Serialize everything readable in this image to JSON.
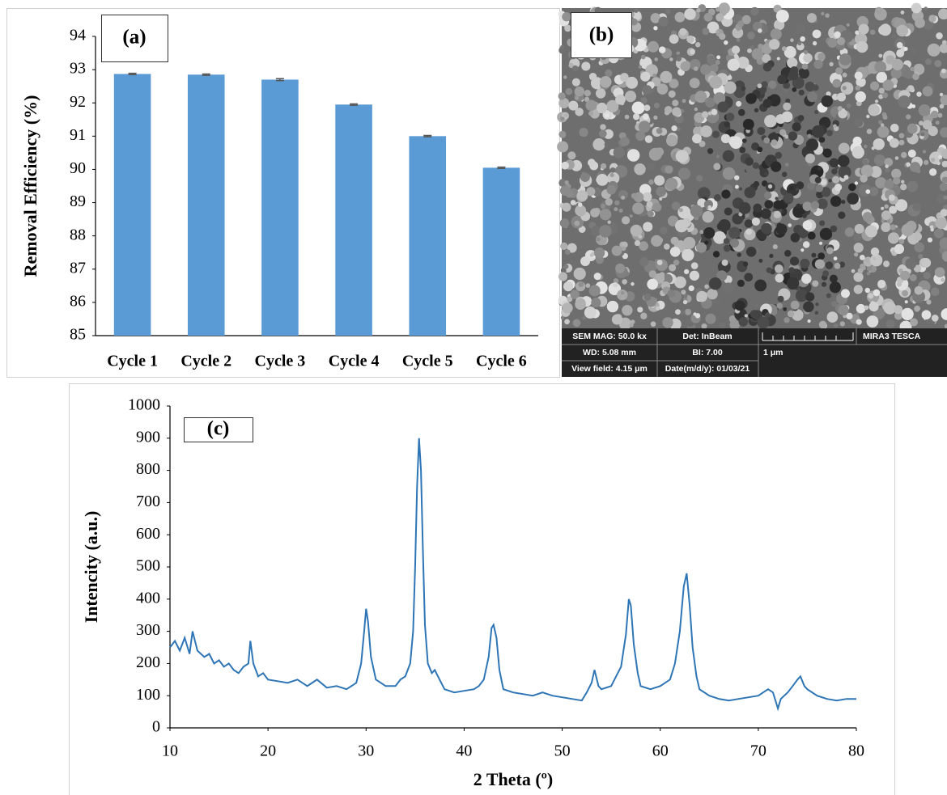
{
  "chart_data": [
    {
      "type": "bar",
      "annotation": "(a)",
      "y_label": "Removal Efficiency (%)",
      "categories": [
        "Cycle 1",
        "Cycle 2",
        "Cycle 3",
        "Cycle 4",
        "Cycle 5",
        "Cycle 6"
      ],
      "values": [
        92.87,
        92.85,
        92.7,
        91.95,
        91.0,
        90.05
      ],
      "errors": [
        0.02,
        0.02,
        0.03,
        0.02,
        0.02,
        0.02
      ],
      "color": "#5b9bd5",
      "error_color": "#555555",
      "ylim": [
        85,
        94
      ],
      "yticks": [
        85,
        86,
        87,
        88,
        89,
        90,
        91,
        92,
        93,
        94
      ]
    },
    {
      "type": "line",
      "annotation": "(c)",
      "y_label": "Intencity (a.u.)",
      "x_label": "2 Theta (º)",
      "color": "#2e75b6",
      "x": [
        10,
        10.5,
        11,
        11.5,
        12,
        12.3,
        12.8,
        13.5,
        14,
        14.5,
        15,
        15.5,
        16,
        16.5,
        17,
        17.5,
        18,
        18.2,
        18.5,
        19,
        19.5,
        20,
        21,
        22,
        23,
        24,
        25,
        26,
        27,
        28,
        28.5,
        29,
        29.5,
        29.8,
        30,
        30.2,
        30.5,
        31,
        31.5,
        32,
        33,
        33.5,
        34,
        34.5,
        34.8,
        35,
        35.2,
        35.4,
        35.6,
        35.8,
        36,
        36.3,
        36.7,
        37,
        37.5,
        38,
        39,
        40,
        41,
        41.5,
        42,
        42.5,
        42.8,
        43,
        43.3,
        43.6,
        44,
        45,
        46,
        47,
        48,
        49,
        50,
        51,
        52,
        52.5,
        53,
        53.3,
        53.7,
        54,
        55,
        55.5,
        56,
        56.5,
        56.8,
        57,
        57.3,
        57.7,
        58,
        59,
        60,
        61,
        61.5,
        62,
        62.4,
        62.7,
        63,
        63.3,
        63.7,
        64,
        65,
        66,
        67,
        68,
        69,
        70,
        70.5,
        71,
        71.5,
        72,
        72.3,
        73,
        73.5,
        74,
        74.3,
        74.7,
        75,
        76,
        77,
        78,
        79,
        80
      ],
      "values": [
        250,
        270,
        240,
        280,
        230,
        300,
        240,
        220,
        230,
        200,
        210,
        190,
        200,
        180,
        170,
        190,
        200,
        270,
        200,
        160,
        170,
        150,
        145,
        140,
        150,
        130,
        150,
        125,
        130,
        120,
        130,
        140,
        200,
        300,
        370,
        330,
        220,
        150,
        140,
        130,
        130,
        150,
        160,
        200,
        300,
        500,
        750,
        900,
        800,
        550,
        320,
        200,
        170,
        180,
        150,
        120,
        110,
        115,
        120,
        130,
        150,
        220,
        310,
        320,
        280,
        180,
        120,
        110,
        105,
        100,
        110,
        100,
        95,
        90,
        85,
        110,
        140,
        180,
        130,
        120,
        130,
        160,
        190,
        290,
        400,
        380,
        260,
        170,
        130,
        120,
        130,
        150,
        200,
        300,
        440,
        480,
        380,
        250,
        160,
        120,
        100,
        90,
        85,
        90,
        95,
        100,
        110,
        120,
        110,
        60,
        90,
        110,
        130,
        150,
        160,
        130,
        120,
        100,
        90,
        85,
        90,
        90
      ],
      "xlim": [
        10,
        80
      ],
      "xticks": [
        10,
        20,
        30,
        40,
        50,
        60,
        70,
        80
      ],
      "ylim": [
        0,
        1000
      ],
      "yticks": [
        0,
        100,
        200,
        300,
        400,
        500,
        600,
        700,
        800,
        900,
        1000
      ]
    }
  ],
  "sem_image": {
    "label": "(b)",
    "info": {
      "mag": "SEM MAG: 50.0 kx",
      "detector": "Det: InBeam",
      "instrument": "MIRA3 TESCA",
      "wd": "WD: 5.08 mm",
      "bi": "BI: 7.00",
      "scale": "1 μm",
      "view_field": "View field: 4.15 μm",
      "date": "Date(m/d/y): 01/03/21"
    }
  }
}
